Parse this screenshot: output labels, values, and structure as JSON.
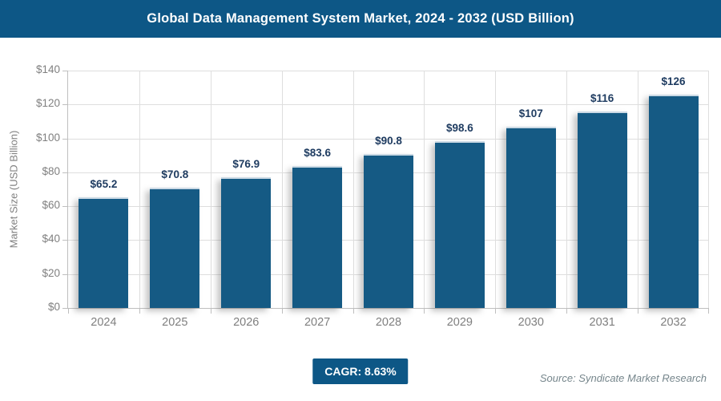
{
  "header": {
    "title": "Global Data Management System Market, 2024 - 2032 (USD Billion)"
  },
  "chart_data": {
    "type": "bar",
    "title": "Global Data Management System Market, 2024 - 2032 (USD Billion)",
    "categories": [
      "2024",
      "2025",
      "2026",
      "2027",
      "2028",
      "2029",
      "2030",
      "2031",
      "2032"
    ],
    "values": [
      65.2,
      70.8,
      76.9,
      83.6,
      90.8,
      98.6,
      107,
      116,
      126
    ],
    "bar_labels": [
      "$65.2",
      "$70.8",
      "$76.9",
      "$83.6",
      "$90.8",
      "$98.6",
      "$107",
      "$116",
      "$126"
    ],
    "xlabel": "",
    "ylabel": "Market Size (USD Billion)",
    "ylim": [
      0,
      140
    ],
    "ytick_step": 20,
    "ytick_labels": [
      "$0",
      "$20",
      "$40",
      "$60",
      "$80",
      "$100",
      "$120",
      "$140"
    ],
    "grid": true,
    "legend": false
  },
  "footer": {
    "cagr_label": "CAGR: 8.63%",
    "source": "Source: Syndicate Market Research"
  },
  "colors": {
    "header_bg": "#0d5786",
    "bar_fill": "#155a84",
    "bar_top_highlight": "#ccdae5",
    "value_label": "#1f3c61",
    "grid_line": "#dedede",
    "axis_line": "#bfbfbf",
    "tick_text": "#808080",
    "category_text": "#7f7f7f",
    "badge_bg": "#0d5786",
    "source_text": "#76868c"
  }
}
